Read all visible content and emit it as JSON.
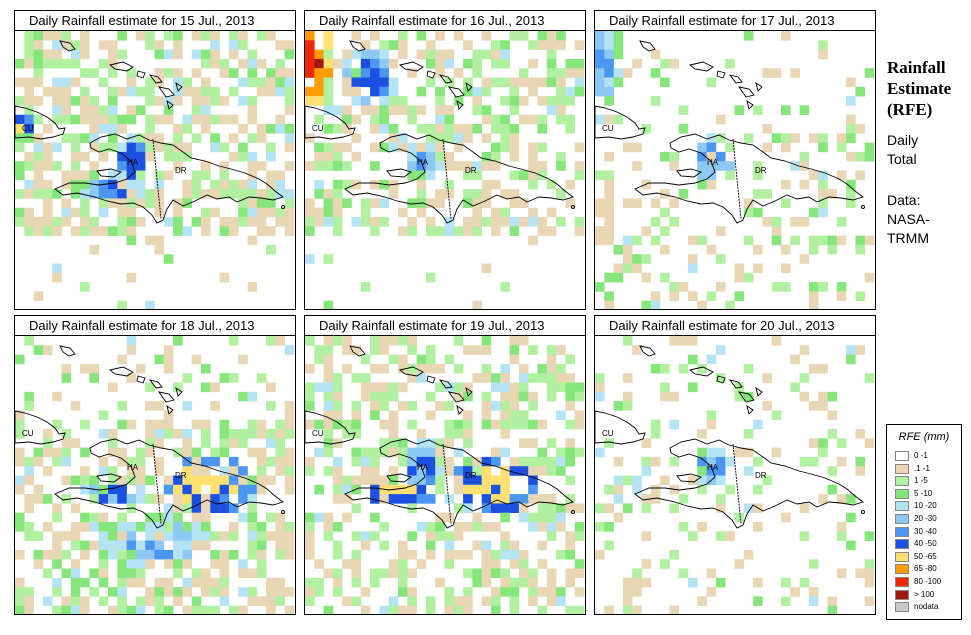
{
  "panels": [
    {
      "title": "Daily Rainfall estimate for  15 Jul., 2013",
      "wetness": 0.55,
      "extent": "north",
      "hotspots": [
        {
          "region": "cuba",
          "level": 4
        },
        {
          "region": "haiti",
          "level": 3
        },
        {
          "region": "haiti-south",
          "level": 3
        }
      ]
    },
    {
      "title": "Daily Rainfall estimate for  16 Jul., 2013",
      "wetness": 0.45,
      "extent": "north",
      "hotspots": [
        {
          "region": "northwest-corner",
          "level": 5
        },
        {
          "region": "north-sea",
          "level": 3
        },
        {
          "region": "haiti",
          "level": 2
        }
      ]
    },
    {
      "title": "Daily Rainfall estimate for  17 Jul., 2013",
      "wetness": 0.3,
      "extent": "south",
      "hotspots": [
        {
          "region": "northwest-corner",
          "level": 2
        },
        {
          "region": "haiti",
          "level": 3
        }
      ]
    },
    {
      "title": "Daily Rainfall estimate for  18 Jul., 2013",
      "wetness": 0.6,
      "extent": "south",
      "hotspots": [
        {
          "region": "dr-central",
          "level": 4
        },
        {
          "region": "south-sea",
          "level": 2
        },
        {
          "region": "haiti-south",
          "level": 3
        }
      ]
    },
    {
      "title": "Daily Rainfall estimate for  19 Jul., 2013",
      "wetness": 0.6,
      "extent": "both",
      "hotspots": [
        {
          "region": "dr-central",
          "level": 4
        },
        {
          "region": "haiti-south",
          "level": 4
        },
        {
          "region": "haiti",
          "level": 3
        }
      ]
    },
    {
      "title": "Daily Rainfall estimate for  20 Jul., 2013",
      "wetness": 0.25,
      "extent": "both",
      "hotspots": [
        {
          "region": "haiti",
          "level": 2
        }
      ]
    }
  ],
  "map_labels": [
    "CU",
    "HA",
    "DR"
  ],
  "sidebar": {
    "title_lines": [
      "Rainfall",
      "Estimate",
      "(RFE)"
    ],
    "period_lines": [
      "Daily",
      "Total"
    ],
    "source_lines": [
      "Data:",
      "NASA-",
      "TRMM"
    ]
  },
  "legend": {
    "title": "RFE (mm)",
    "classes": [
      {
        "label": "0 -1",
        "color": "#ffffff"
      },
      {
        "label": ".1 -1",
        "color": "#e8d6b4"
      },
      {
        "label": "1 -5",
        "color": "#b0f0a0"
      },
      {
        "label": "5 -10",
        "color": "#86e67c"
      },
      {
        "label": "10 -20",
        "color": "#b4e4f4"
      },
      {
        "label": "20 -30",
        "color": "#8cc8f4"
      },
      {
        "label": "30 -40",
        "color": "#4a96f0"
      },
      {
        "label": "40 -50",
        "color": "#1c50e0"
      },
      {
        "label": "50 -65",
        "color": "#ffe070"
      },
      {
        "label": "65 -80",
        "color": "#ff9c00"
      },
      {
        "label": "80 -100",
        "color": "#ee2800"
      },
      {
        "label": "> 100",
        "color": "#a01810"
      },
      {
        "label": "nodata",
        "color": "#c8c8c8"
      }
    ]
  }
}
